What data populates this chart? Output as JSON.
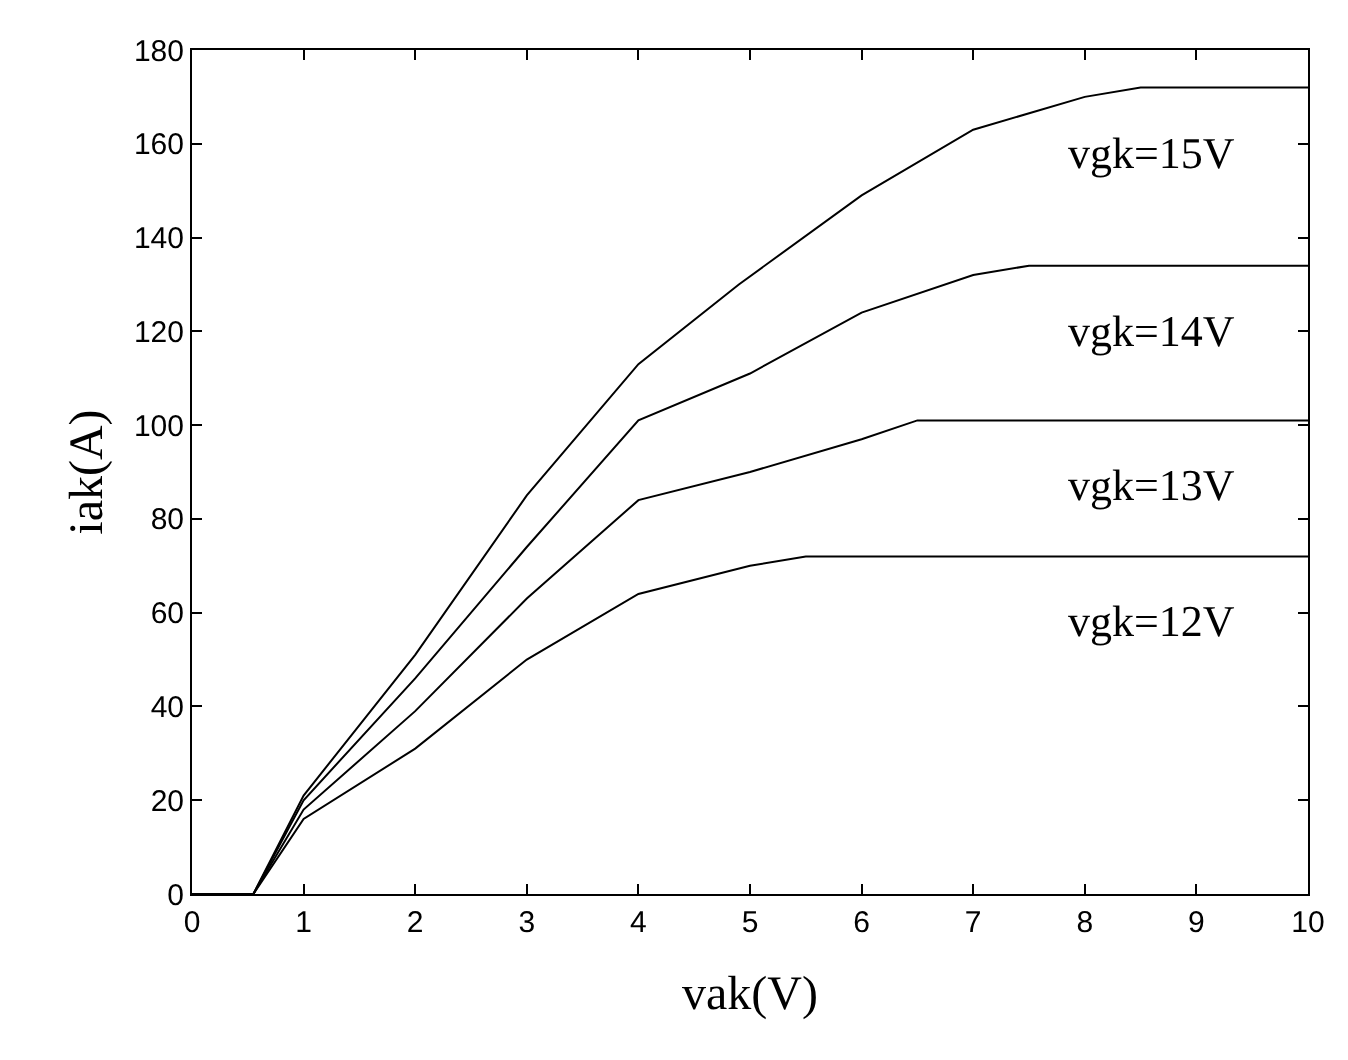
{
  "chart_data": {
    "type": "line",
    "xlabel": "vak(V)",
    "ylabel": "iak(A)",
    "xlim": [
      0,
      10
    ],
    "ylim": [
      0,
      180
    ],
    "xticks": [
      0,
      1,
      2,
      3,
      4,
      5,
      6,
      7,
      8,
      9,
      10
    ],
    "yticks": [
      0,
      20,
      40,
      60,
      80,
      100,
      120,
      140,
      160,
      180
    ],
    "legend": "right",
    "marker": "none",
    "line_style": "solid",
    "series": [
      {
        "name": "vgk=15V",
        "color": "#000000",
        "x": [
          0,
          0.55,
          1,
          2,
          3,
          4,
          4.9,
          6,
          7,
          8,
          8.5,
          10
        ],
        "values": [
          0,
          0,
          21,
          51,
          85,
          113,
          130,
          149,
          163,
          170,
          172,
          172
        ]
      },
      {
        "name": "vgk=14V",
        "color": "#000000",
        "x": [
          0,
          0.55,
          1,
          2,
          3,
          4,
          5,
          6,
          7,
          7.5,
          10
        ],
        "values": [
          0,
          0,
          20,
          46,
          74,
          101,
          111,
          124,
          132,
          134,
          134
        ]
      },
      {
        "name": "vgk=13V",
        "color": "#000000",
        "x": [
          0,
          0.55,
          1,
          2,
          3,
          4,
          5,
          6,
          6.5,
          10
        ],
        "values": [
          0,
          0,
          18,
          39,
          63,
          84,
          90,
          97,
          101,
          101
        ]
      },
      {
        "name": "vgk=12V",
        "color": "#000000",
        "x": [
          0,
          0.55,
          1,
          2,
          3,
          4,
          5,
          5.5,
          10
        ],
        "values": [
          0,
          0,
          16,
          31,
          50,
          64,
          70,
          72,
          72
        ]
      }
    ]
  }
}
